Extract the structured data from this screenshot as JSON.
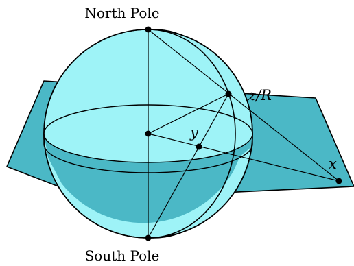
{
  "labels": {
    "north_pole": "North Pole",
    "south_pole": "South Pole",
    "z_over_r": "z/R",
    "y": "y",
    "x": "x"
  },
  "colors": {
    "plane_fill": "#4bb8c6",
    "sphere_fill": "#9ef3f7",
    "sphere_rim_fill": "#8fe6ee",
    "stroke": "#000000",
    "point": "#000000"
  }
}
